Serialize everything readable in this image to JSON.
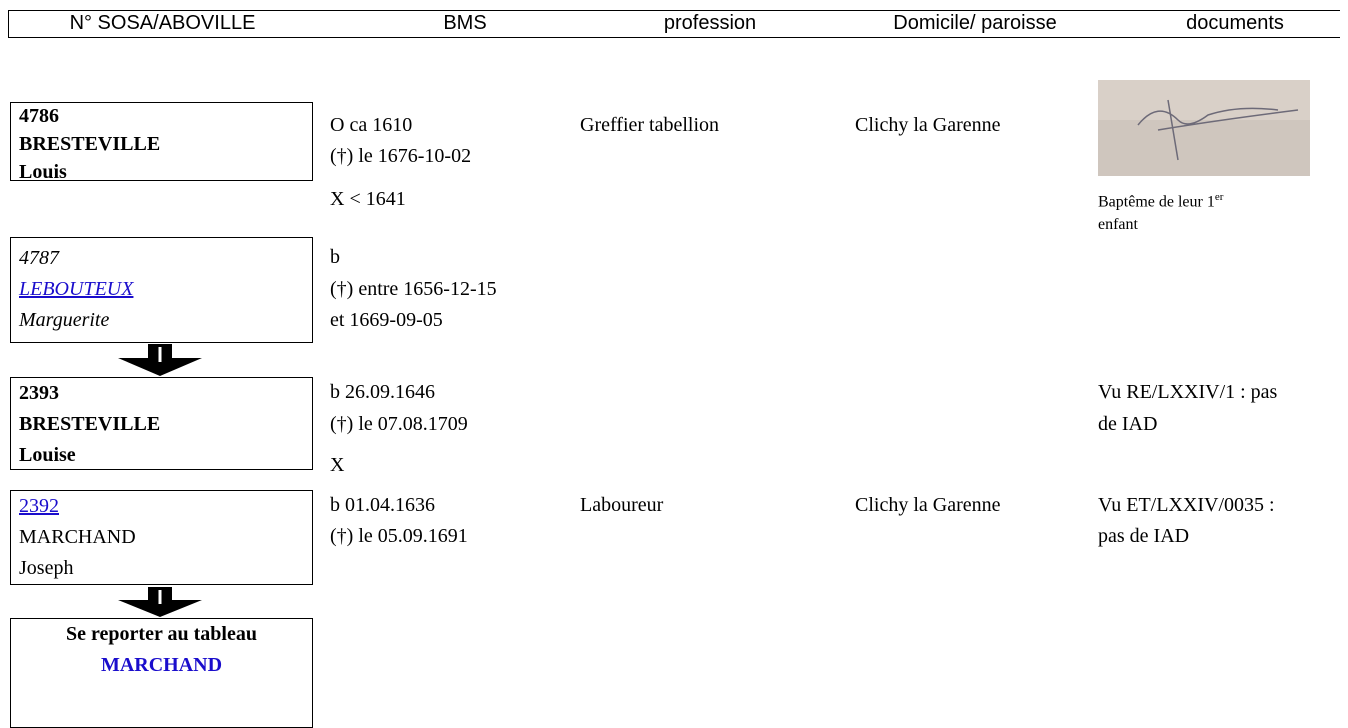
{
  "header": {
    "sosa": "N° SOSA/ABOVILLE",
    "bms": "BMS",
    "profession": "profession",
    "domicile": "Domicile/ paroisse",
    "documents": "documents"
  },
  "rows": [
    {
      "sosa": "4786",
      "surname": "BRESTEVILLE",
      "given": "Louis",
      "bms": [
        "O ca 1610",
        "(†) le 1676-10-02"
      ],
      "profession": "Greffier tabellion",
      "domicile": "Clichy la Garenne"
    },
    {
      "sosa": "4787",
      "surname": "LEBOUTEUX",
      "given": "Marguerite",
      "bms": [
        "b",
        "(†) entre 1656-12-15",
        "et 1669-09-05"
      ]
    },
    {
      "sosa": "2393",
      "surname": "BRESTEVILLE",
      "given": "Louise",
      "bms": [
        "b 26.09.1646",
        "(†) le 07.08.1709"
      ],
      "documents": [
        "Vu RE/LXXIV/1 : pas",
        "de IAD"
      ]
    },
    {
      "sosa": "2392",
      "surname": "MARCHAND",
      "given": "Joseph",
      "bms": [
        "b 01.04.1636",
        "(†) le 05.09.1691"
      ],
      "profession": "Laboureur",
      "domicile": "Clichy la Garenne",
      "documents": [
        "Vu ET/LXXIV/0035 :",
        "pas de IAD"
      ]
    }
  ],
  "marriages": [
    "X < 1641",
    "X"
  ],
  "document_caption": {
    "text": "Baptême de leur 1",
    "sup": "er",
    "line2": "enfant"
  },
  "footer_box": {
    "text": "Se reporter au tableau",
    "link": "MARCHAND"
  }
}
